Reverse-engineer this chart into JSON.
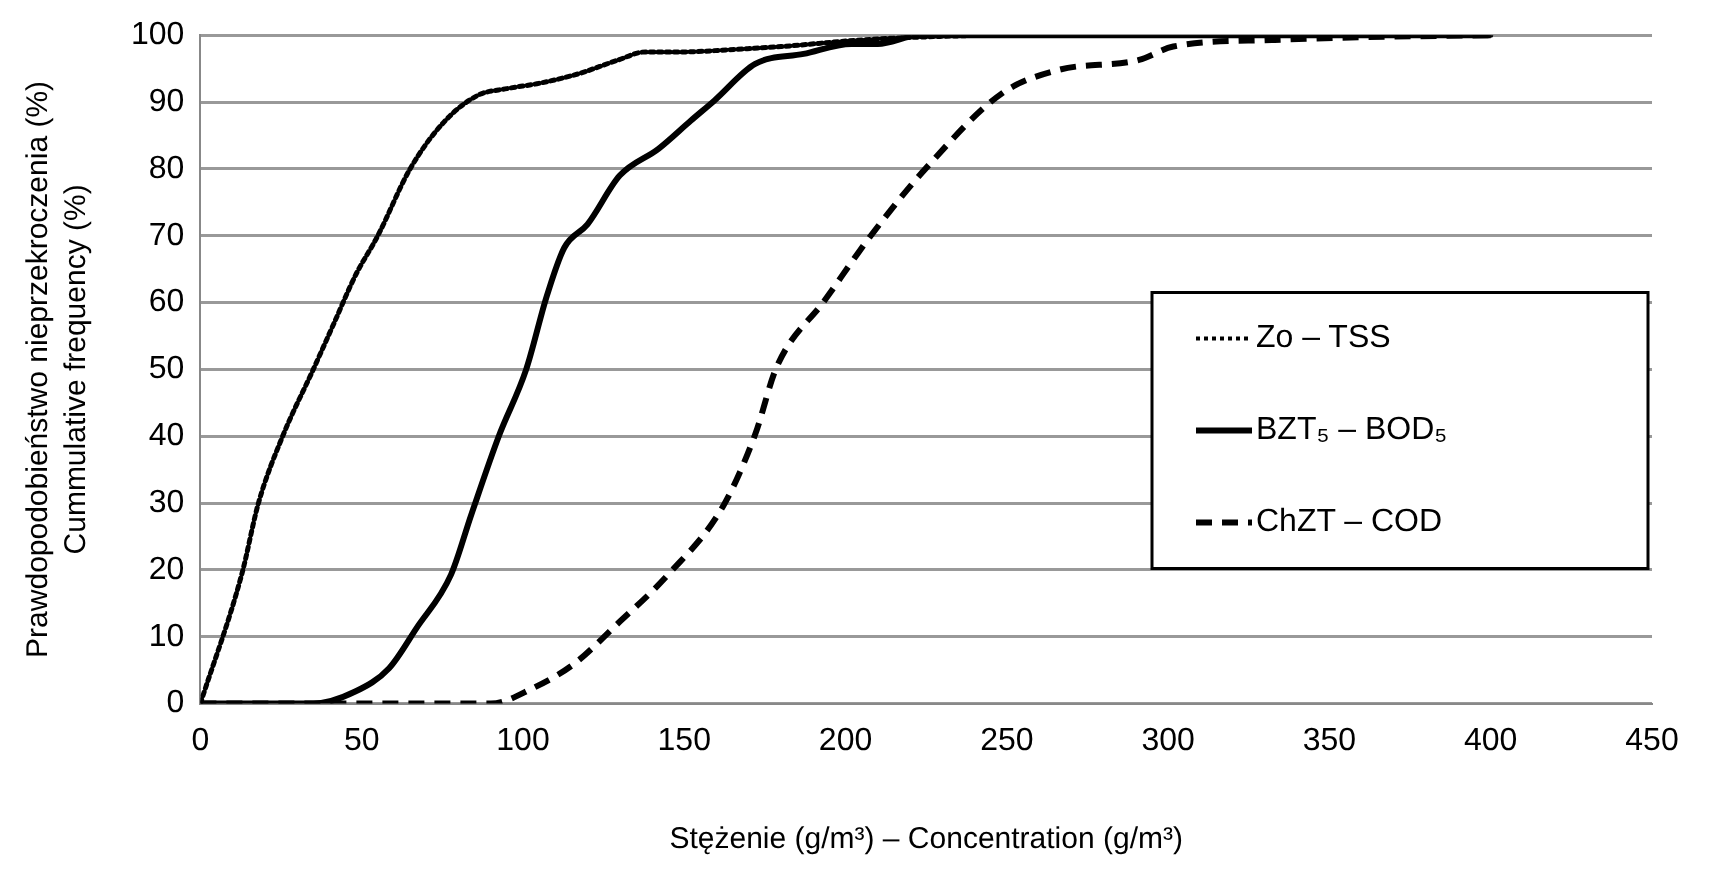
{
  "chart_data": {
    "type": "line",
    "xlabel": "Stężenie (g/m³) – Concentration (g/m³)",
    "ylabel": "Prawdopodobieństwo nieprzekroczenia (%)\nCummulative frequency (%)",
    "xlim": [
      0,
      450
    ],
    "xticks": [
      0,
      50,
      100,
      150,
      200,
      250,
      300,
      350,
      400,
      450
    ],
    "ylim": [
      0,
      100
    ],
    "yticks": [
      0,
      10,
      20,
      30,
      40,
      50,
      60,
      70,
      80,
      90,
      100
    ],
    "grid": "y",
    "legend": "right",
    "marker": "none",
    "series": [
      {
        "name": "Zo – TSS",
        "color": "#000000",
        "line_style": "dotted",
        "x": [
          0,
          12.8,
          18,
          25.5,
          35,
          41.5,
          48,
          55,
          65,
          75.5,
          86,
          95,
          105,
          117,
          129,
          138,
          150,
          163,
          180,
          205,
          222,
          250,
          300,
          350,
          400
        ],
        "values": [
          0,
          19.3,
          30,
          40,
          50,
          57,
          64,
          70,
          80,
          87,
          91,
          92,
          92.8,
          94.2,
          96.2,
          97.5,
          97.5,
          97.8,
          98.3,
          99.3,
          99.7,
          100,
          100,
          100,
          100
        ]
      },
      {
        "name": "BZT₅ – BOD₅",
        "color": "#000000",
        "line_style": "solid",
        "x": [
          0,
          35,
          48,
          58.5,
          67,
          77.7,
          84,
          92.5,
          101,
          107.4,
          112.8,
          120,
          130,
          142,
          152,
          159.3,
          172,
          187,
          201.8,
          210,
          223,
          250,
          300,
          350,
          400
        ],
        "values": [
          0,
          0,
          1.8,
          5.3,
          11.3,
          19.3,
          28.3,
          40,
          50,
          61,
          68.2,
          71.7,
          79,
          83,
          87.2,
          90.2,
          95.7,
          97.2,
          98.7,
          98.7,
          100,
          100,
          100,
          100,
          100
        ]
      },
      {
        "name": "ChZT – COD",
        "color": "#000000",
        "line_style": "dashed",
        "x": [
          0,
          90,
          103,
          116,
          129,
          145,
          162,
          172,
          178.6,
          193.5,
          208.3,
          225.3,
          248.5,
          266,
          291,
          301.6,
          333,
          360,
          400
        ],
        "values": [
          0,
          0,
          2.3,
          6,
          11.8,
          19.3,
          29.5,
          40.3,
          50.3,
          60.3,
          70.3,
          80.3,
          91.3,
          94.8,
          96.3,
          98.3,
          99.3,
          99.7,
          100
        ]
      }
    ]
  }
}
